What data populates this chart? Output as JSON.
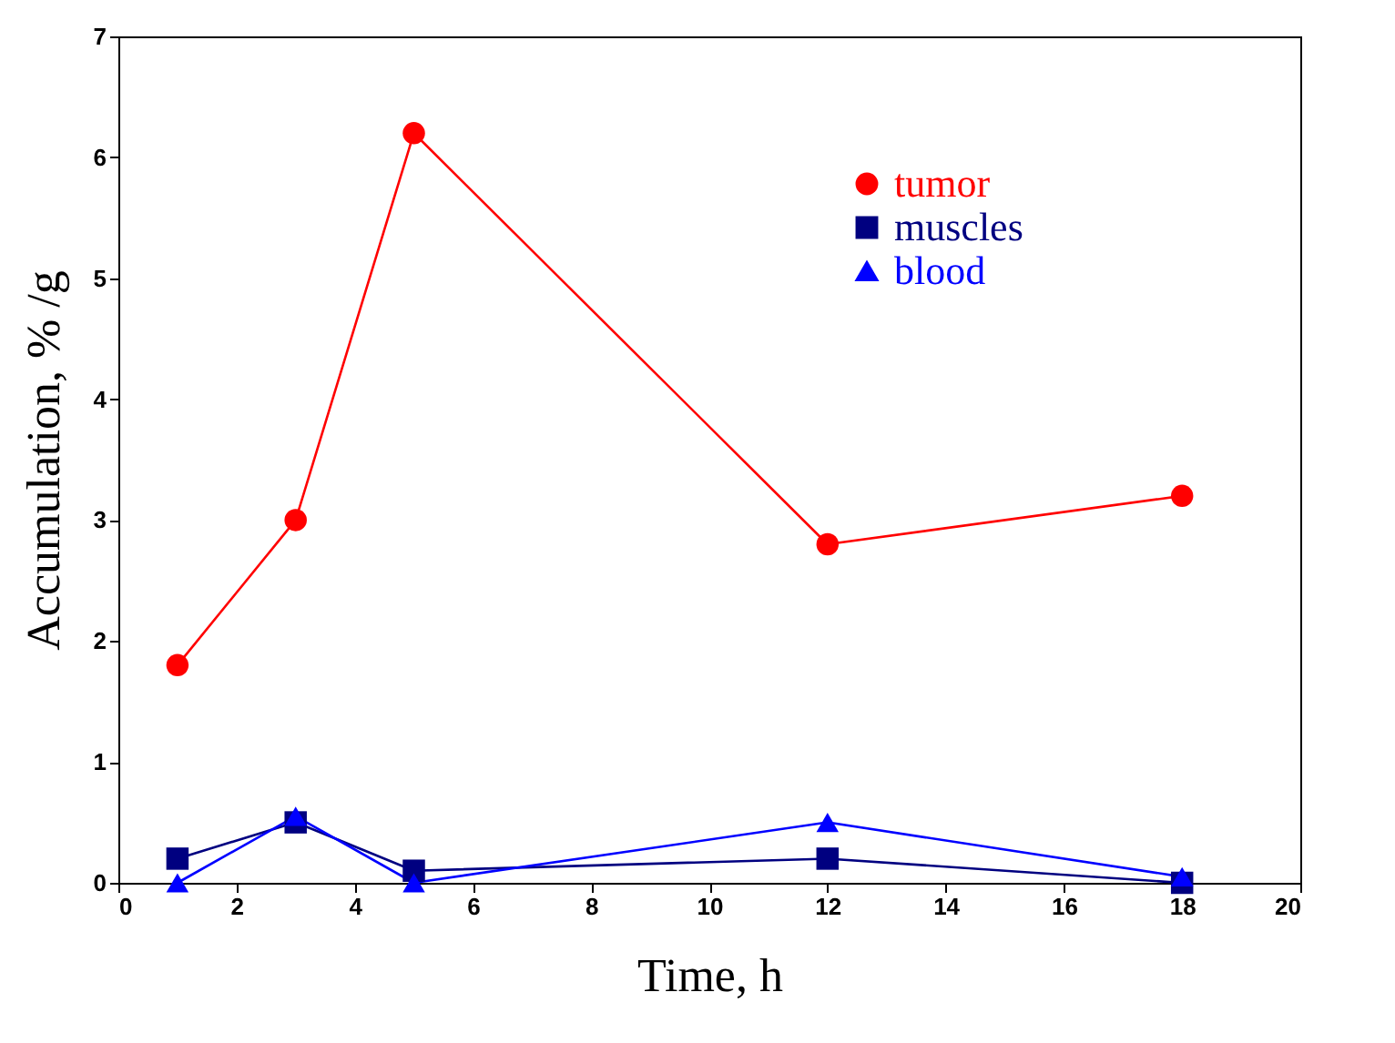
{
  "chart_data": {
    "type": "line",
    "xlabel": "Time, h",
    "ylabel": "Accumulation, % /g",
    "x": [
      1,
      3,
      5,
      12,
      18
    ],
    "series": [
      {
        "name": "tumor",
        "color": "#ff0000",
        "marker": "circle",
        "values": [
          1.8,
          3.0,
          6.2,
          2.8,
          3.2
        ]
      },
      {
        "name": "muscles",
        "color": "#000080",
        "marker": "square",
        "values": [
          0.2,
          0.5,
          0.1,
          0.2,
          0.0
        ]
      },
      {
        "name": "blood",
        "color": "#0000ff",
        "marker": "triangle",
        "values": [
          0.0,
          0.55,
          0.0,
          0.5,
          0.05
        ]
      }
    ],
    "xlim": [
      0,
      20
    ],
    "xticks": [
      0,
      2,
      4,
      6,
      8,
      10,
      12,
      14,
      16,
      18,
      20
    ],
    "ylim": [
      0,
      7
    ],
    "yticks": [
      0,
      1,
      2,
      3,
      4,
      5,
      6,
      7
    ],
    "grid": false,
    "legend": "top right",
    "line_style": "solid"
  }
}
